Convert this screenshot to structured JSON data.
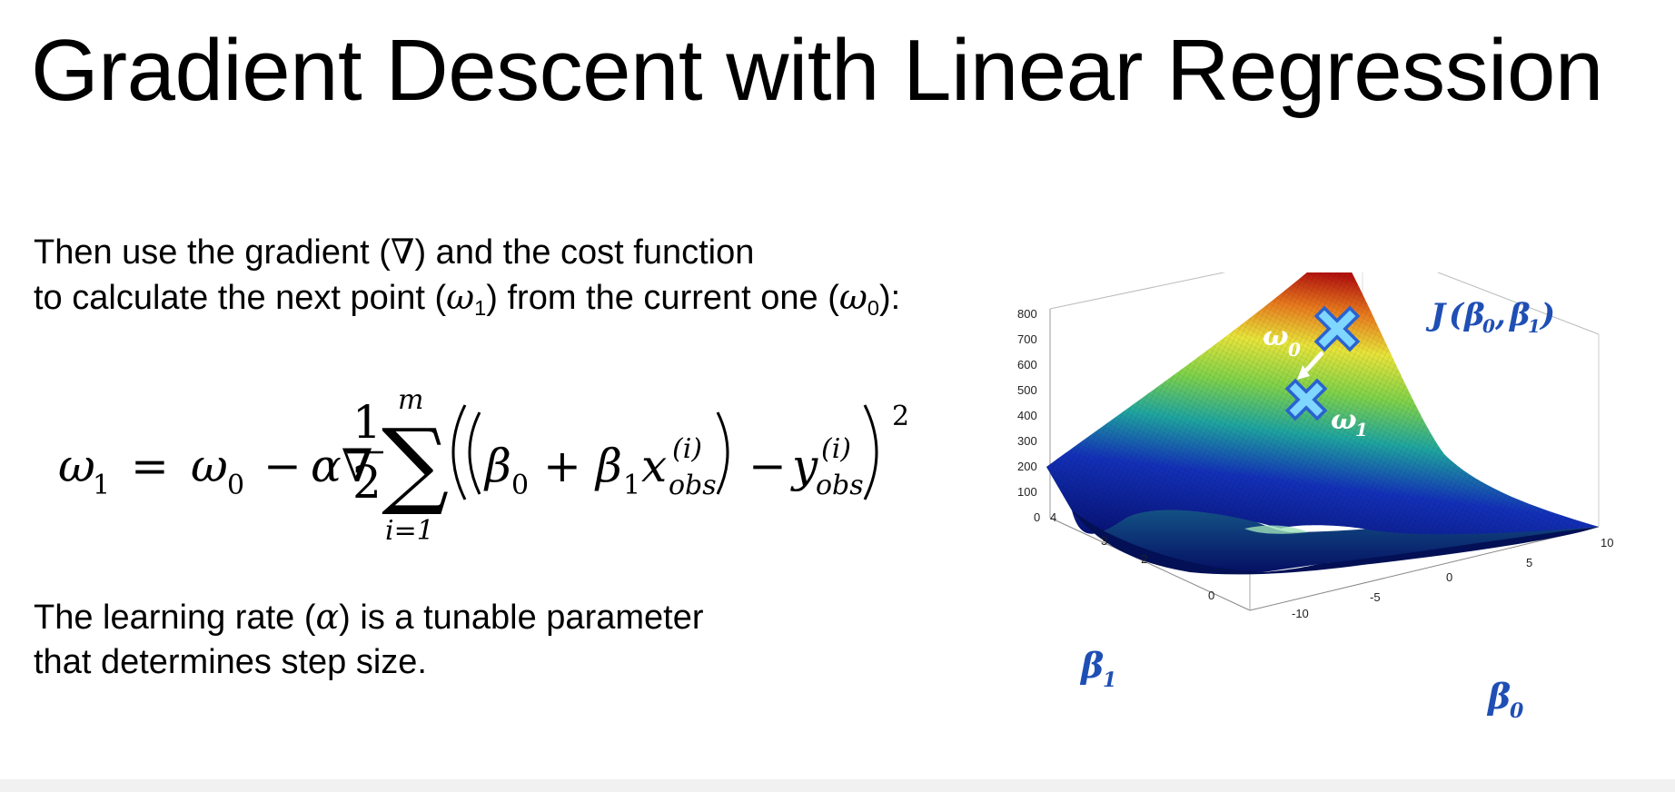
{
  "slide": {
    "title": "Gradient Descent with Linear Regression",
    "para1": {
      "line1_a": "Then use the gradient (",
      "line1_sym": "∇",
      "line1_b": ") and the cost function",
      "line2_a": "to calculate the next point (",
      "line2_sym": "ω",
      "line2_sub": "1",
      "line2_b": ") from the current one (",
      "line2_sym2": "ω",
      "line2_sub2": "0",
      "line2_c": "):"
    },
    "equation": {
      "lhs": "ω",
      "lhs_sub": "1",
      "equals": "=",
      "w0": "ω",
      "w0_sub": "0",
      "minus": "−",
      "alpha_nabla": "α∇",
      "frac_num": "1",
      "frac_den": "2",
      "sum": "∑",
      "sum_upper": "m",
      "sum_lower": "i=1",
      "beta0": "β",
      "beta0_sub": "0",
      "plus": "+",
      "beta1": "β",
      "beta1_sub": "1",
      "x": "x",
      "x_sup": "(i)",
      "x_sub": "obs",
      "minus2": "−",
      "y": "y",
      "y_sup": "(i)",
      "y_sub": "obs",
      "power": "2"
    },
    "para2": {
      "line1_a": "The learning rate (",
      "line1_sym": "α",
      "line1_b": ") is a tunable parameter",
      "line2": "that determines step size."
    }
  },
  "chart_data": {
    "type": "surface",
    "z_ticks": [
      "800",
      "700",
      "600",
      "500",
      "400",
      "300",
      "200",
      "100",
      "0"
    ],
    "beta1_ticks": [
      "4",
      "3",
      "2",
      "0"
    ],
    "beta0_ticks": [
      "10",
      "5",
      "0",
      "-5",
      "-10"
    ],
    "z_label": {
      "sym": "J",
      "open": "(",
      "b0": "β",
      "b0_sub": "0",
      "comma": ",",
      "b1": "β",
      "b1_sub": "1",
      "close": ")"
    },
    "x_label": {
      "sym": "β",
      "sub": "1"
    },
    "y_label": {
      "sym": "β",
      "sub": "0"
    },
    "markers": [
      {
        "label": "ω",
        "sub": "0"
      },
      {
        "label": "ω",
        "sub": "1"
      }
    ],
    "colors": {
      "low": "#0a1a8c",
      "mid": "#1fa5a0",
      "high": "#e8e43a",
      "top": "#b3140f",
      "label": "#1f4fb5",
      "marker": "#5fc8f5"
    }
  }
}
